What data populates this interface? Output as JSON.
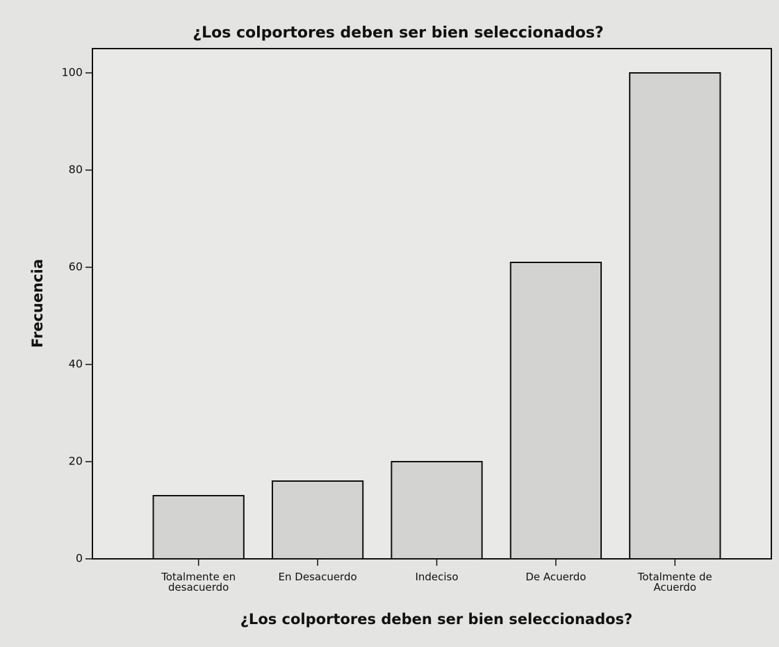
{
  "chart_data": {
    "type": "bar",
    "title": "¿Los colportores deben ser bien seleccionados?",
    "x_label": "¿Los colportores deben ser bien seleccionados?",
    "y_label": "Frecuencia",
    "categories": [
      "Totalmente en\ndesacuerdo",
      "En Desacuerdo",
      "Indeciso",
      "De Acuerdo",
      "Totalmente de\nAcuerdo"
    ],
    "values": [
      13,
      16,
      20,
      61,
      100
    ],
    "color": "#d3d3d1",
    "ylim": [
      0,
      105
    ],
    "yticks": [
      0,
      20,
      40,
      60,
      80,
      100
    ],
    "grid": false
  }
}
